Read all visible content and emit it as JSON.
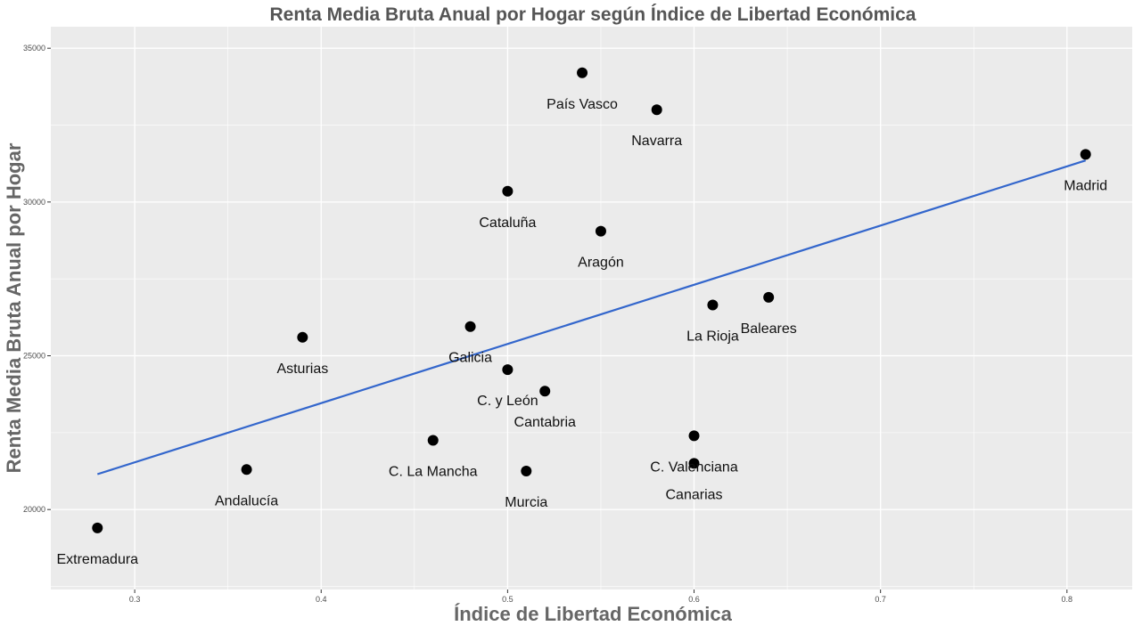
{
  "chart_data": {
    "type": "scatter",
    "title": "Renta Media Bruta Anual por Hogar según Índice de Libertad Económica",
    "xlabel": "Índice de Libertad Económica",
    "ylabel": "Renta Media Bruta Anual por Hogar",
    "xlim": [
      0.255,
      0.835
    ],
    "ylim": [
      17400,
      35700
    ],
    "xticks": [
      0.3,
      0.4,
      0.5,
      0.6,
      0.7,
      0.8
    ],
    "xtick_labels": [
      "0.3",
      "0.4",
      "0.5",
      "0.6",
      "0.7",
      "0.8"
    ],
    "yticks": [
      20000,
      25000,
      30000,
      35000
    ],
    "ytick_labels": [
      "20000",
      "25000",
      "30000",
      "35000"
    ],
    "grid": true,
    "colors": {
      "panel": "#ebebeb",
      "grid": "#ffffff",
      "points": "#000000",
      "trend": "#3366cc"
    },
    "trendline": {
      "x": [
        0.28,
        0.81
      ],
      "y": [
        21150,
        31350
      ]
    },
    "points": [
      {
        "label": "Extremadura",
        "x": 0.28,
        "y": 19400
      },
      {
        "label": "Andalucía",
        "x": 0.36,
        "y": 21300
      },
      {
        "label": "Asturias",
        "x": 0.39,
        "y": 25600
      },
      {
        "label": "C. La Mancha",
        "x": 0.46,
        "y": 22250
      },
      {
        "label": "Galicia",
        "x": 0.48,
        "y": 25950
      },
      {
        "label": "Cataluña",
        "x": 0.5,
        "y": 30350
      },
      {
        "label": "C. y León",
        "x": 0.5,
        "y": 24550
      },
      {
        "label": "Murcia",
        "x": 0.51,
        "y": 21250
      },
      {
        "label": "Cantabria",
        "x": 0.52,
        "y": 23850
      },
      {
        "label": "País Vasco",
        "x": 0.54,
        "y": 34200
      },
      {
        "label": "Aragón",
        "x": 0.55,
        "y": 29050
      },
      {
        "label": "Navarra",
        "x": 0.58,
        "y": 33000
      },
      {
        "label": "C. Valenciana",
        "x": 0.6,
        "y": 22400
      },
      {
        "label": "Canarias",
        "x": 0.6,
        "y": 21500
      },
      {
        "label": "La Rioja",
        "x": 0.61,
        "y": 26650
      },
      {
        "label": "Baleares",
        "x": 0.64,
        "y": 26900
      },
      {
        "label": "Madrid",
        "x": 0.81,
        "y": 31550
      }
    ]
  }
}
